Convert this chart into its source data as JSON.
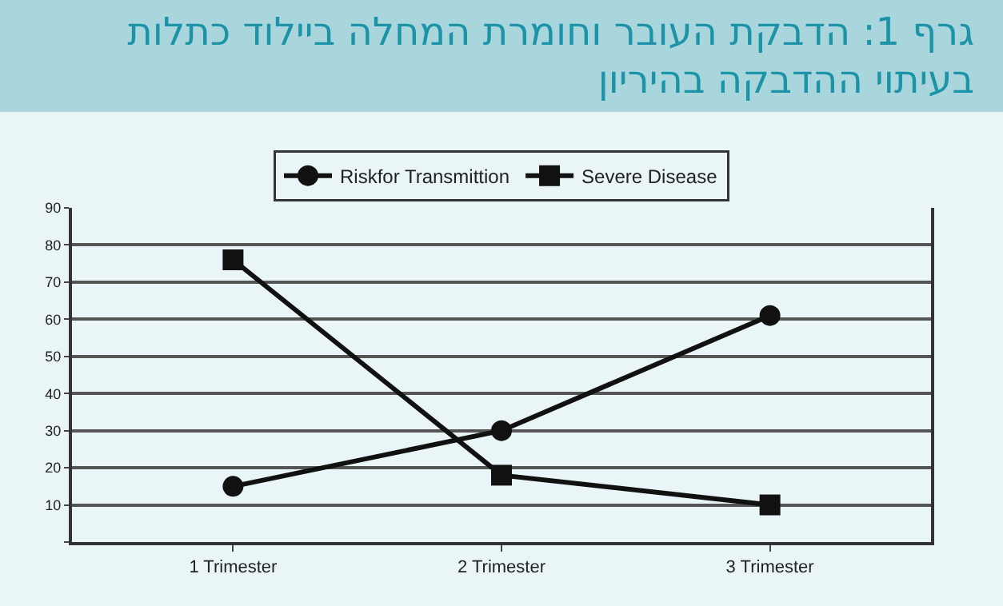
{
  "chart_data": {
    "type": "line",
    "title": "גרף 1: הדבקת העובר וחומרת המחלה ביילוד כתלות בעיתוי ההדבקה בהיריון",
    "categories": [
      "1 Trimester",
      "2 Trimester",
      "3 Trimester"
    ],
    "series": [
      {
        "name": "Riskfor Transmittion",
        "color": "#111111",
        "marker": "circle",
        "values": [
          15,
          30,
          61
        ]
      },
      {
        "name": "Severe Disease",
        "color": "#111111",
        "marker": "square",
        "values": [
          76,
          18,
          10
        ]
      }
    ],
    "ylim": [
      0,
      90
    ],
    "yticks": [
      {
        "value": 0,
        "label": null
      },
      10,
      20,
      30,
      40,
      50,
      60,
      70,
      80,
      90
    ],
    "grid": "y",
    "legend": "top",
    "line_style": "solid"
  }
}
